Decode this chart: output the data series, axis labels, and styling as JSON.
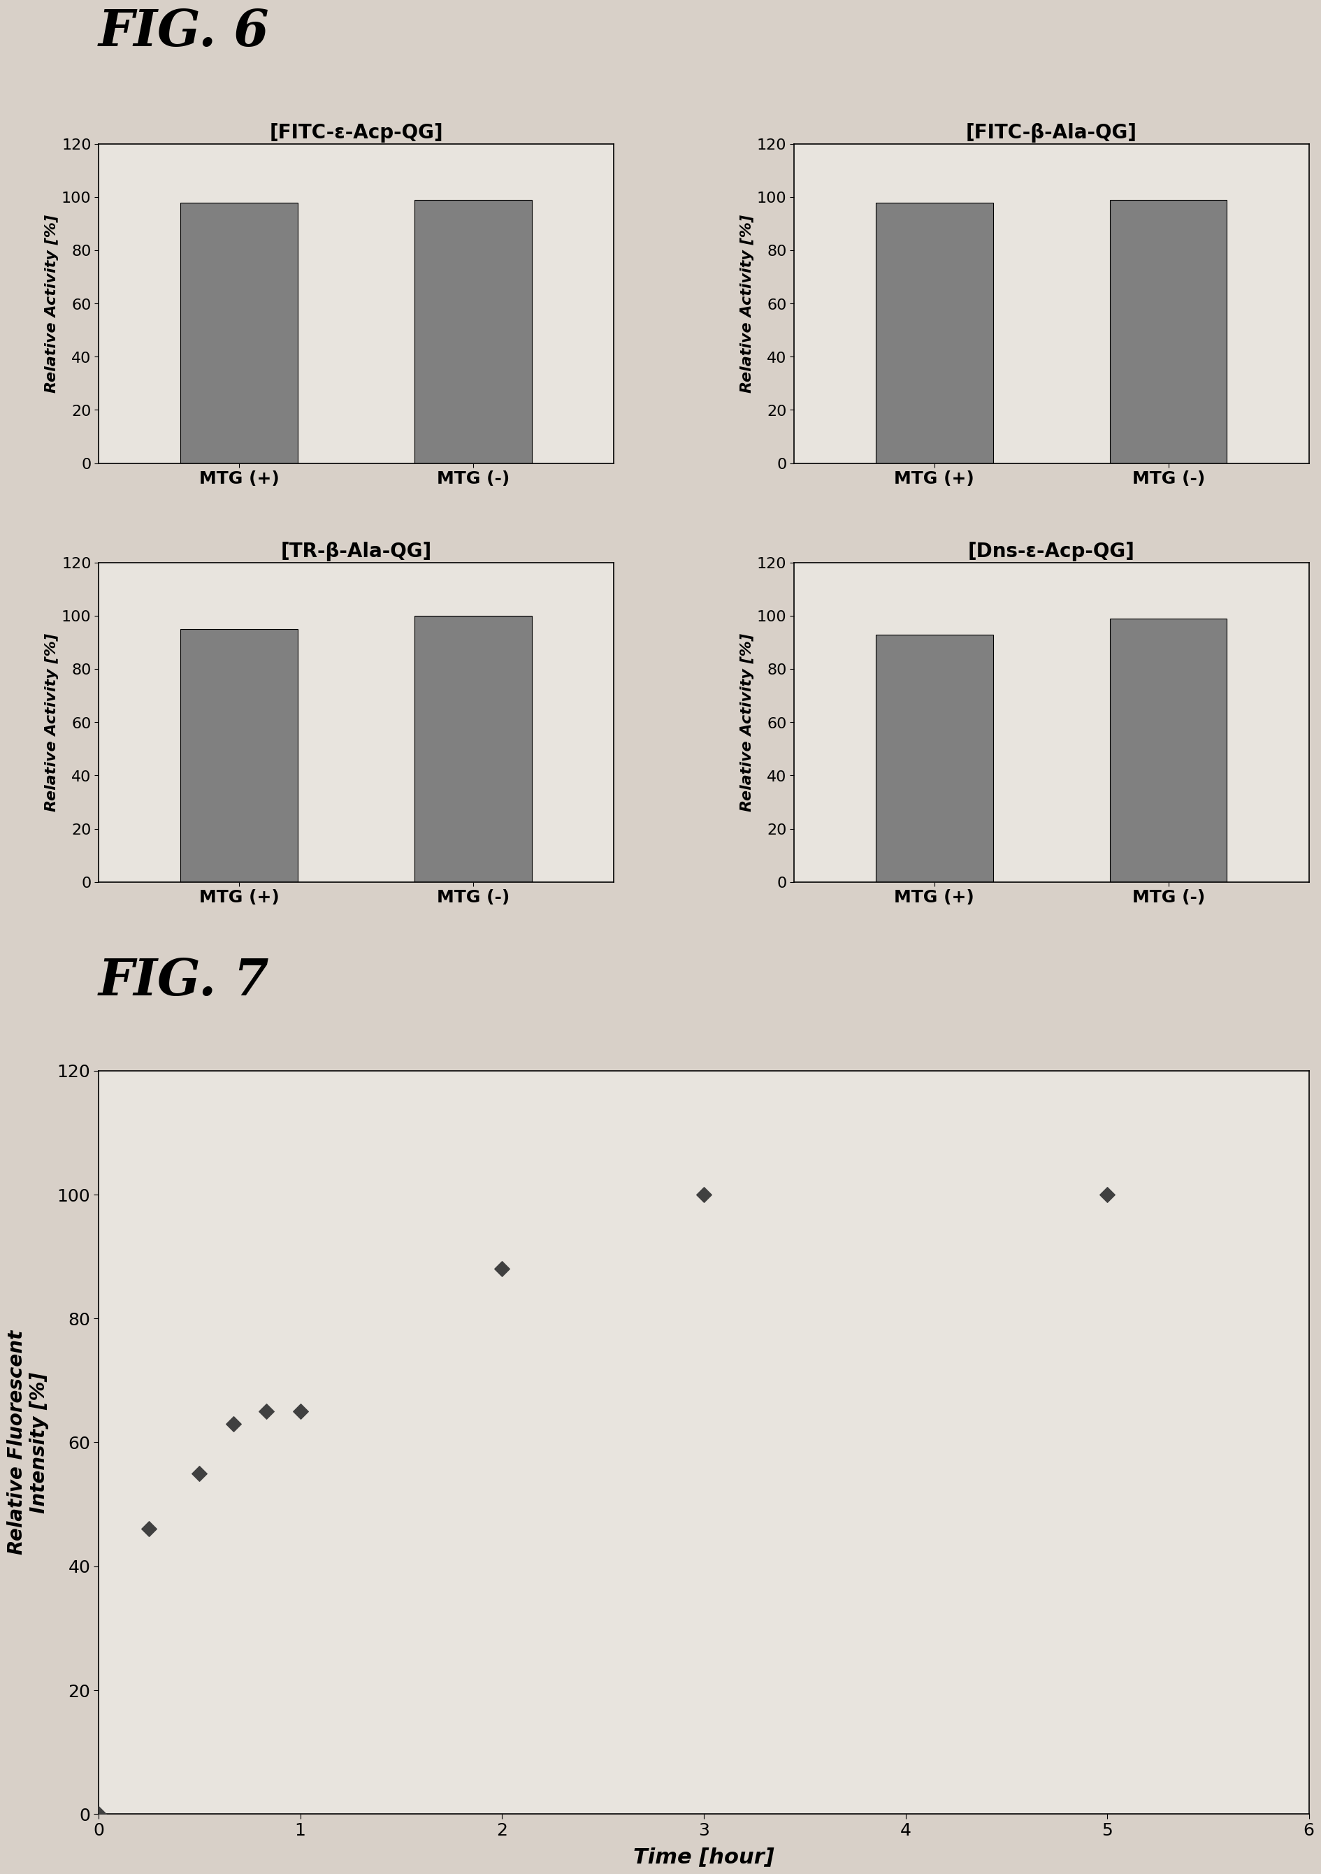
{
  "fig6_title": "FIG. 6",
  "fig7_title": "FIG. 7",
  "subplots": [
    {
      "title": "[FITC-ε-Acp-QG]",
      "mtg_plus": 98,
      "mtg_minus": 99
    },
    {
      "title": "[FITC-β-Ala-QG]",
      "mtg_plus": 98,
      "mtg_minus": 99
    },
    {
      "title": "[TR-β-Ala-QG]",
      "mtg_plus": 95,
      "mtg_minus": 100
    },
    {
      "title": "[Dns-ε-Acp-QG]",
      "mtg_plus": 93,
      "mtg_minus": 99
    }
  ],
  "bar_color": "#808080",
  "bar_width": 0.5,
  "bar_xlabels": [
    "MTG (+)",
    "MTG (-)"
  ],
  "bar_ylabel": "Relative Activity [%]",
  "bar_ylim": [
    0,
    120
  ],
  "bar_yticks": [
    0,
    20,
    40,
    60,
    80,
    100,
    120
  ],
  "scatter_x": [
    0,
    0.25,
    0.5,
    0.67,
    0.83,
    1.0,
    2.0,
    3.0,
    5.0
  ],
  "scatter_y": [
    0,
    46,
    55,
    63,
    65,
    65,
    88,
    100,
    100
  ],
  "scatter_xlabel": "Time [hour]",
  "scatter_ylabel": "Relative Fluorescent\nIntensity [%]",
  "scatter_ylim": [
    0,
    120
  ],
  "scatter_xlim": [
    0,
    6
  ],
  "scatter_yticks": [
    0,
    20,
    40,
    60,
    80,
    100,
    120
  ],
  "scatter_xticks": [
    0,
    1,
    2,
    3,
    4,
    5,
    6
  ],
  "scatter_color": "#404040",
  "background_color": "#d8d0c8",
  "plot_bg_color": "#e8e4de"
}
